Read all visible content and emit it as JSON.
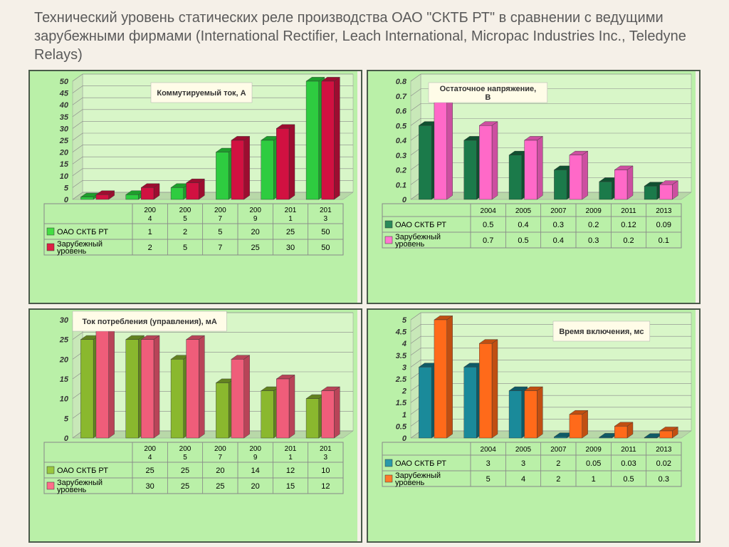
{
  "title": "Технический уровень статических реле производства ОАО \"СКТБ РТ\" в сравнении с ведущими зарубежными фирмами (International Rectifier, Leach International, Micropac Industries Inc., Teledyne Relays)",
  "years_short": [
    "200\n4",
    "200\n5",
    "200\n7",
    "200\n9",
    "201\n1",
    "201\n3"
  ],
  "years_full": [
    "2004",
    "2005",
    "2007",
    "2009",
    "2011",
    "2013"
  ],
  "legend_series1": "ОАО СКТБ РТ",
  "legend_series2": "Зарубежный уровень",
  "panel_bg": "#baf0a8",
  "chart_bg_light": "#d8f6c8",
  "chart_floor": "#b8d8a8",
  "chart_wall": "#c8e8b8",
  "grid_color": "#888888",
  "table_border": "#888888",
  "charts": [
    {
      "id": "c1",
      "title": "Коммутируемый ток, А",
      "color1": "#2ecc40",
      "color1_side": "#1e9e2c",
      "color2": "#d11141",
      "color2_side": "#9c0d30",
      "swatch1": "#44dd44",
      "swatch2": "#dd2244",
      "ymin": 0,
      "ymax": 50,
      "ystep": 5,
      "series1": [
        1,
        2,
        5,
        20,
        25,
        50
      ],
      "series2": [
        2,
        5,
        7,
        25,
        30,
        50
      ],
      "x_labels": "short"
    },
    {
      "id": "c2",
      "title": "Остаточное напряжение, В",
      "color1": "#1b7a4a",
      "color1_side": "#105030",
      "color2": "#ff69c8",
      "color2_side": "#cc4fa0",
      "swatch1": "#2a8a5a",
      "swatch2": "#ff78d0",
      "ymin": 0,
      "ymax": 0.8,
      "ystep": 0.1,
      "series1": [
        0.5,
        0.4,
        0.3,
        0.2,
        0.12,
        0.09
      ],
      "series2": [
        0.7,
        0.5,
        0.4,
        0.3,
        0.2,
        0.1
      ],
      "x_labels": "full"
    },
    {
      "id": "c3",
      "title": "Ток потребления (управления), мА",
      "color1": "#8ab82e",
      "color1_side": "#628220",
      "color2": "#ef5d7a",
      "color2_side": "#b84458",
      "swatch1": "#9ac83e",
      "swatch2": "#ff6d8a",
      "ymin": 0,
      "ymax": 30,
      "ystep": 5,
      "series1": [
        25,
        25,
        20,
        14,
        12,
        10
      ],
      "series2": [
        30,
        25,
        25,
        20,
        15,
        12
      ],
      "x_labels": "short"
    },
    {
      "id": "c4",
      "title": "Время включения, мс",
      "color1": "#1a8a9a",
      "color1_side": "#0f5a66",
      "color2": "#ff6a1a",
      "color2_side": "#c04f12",
      "swatch1": "#2a9aaa",
      "swatch2": "#ff7a2a",
      "ymin": 0,
      "ymax": 5,
      "ystep": 0.5,
      "series1": [
        3,
        3,
        2,
        0.05,
        0.03,
        0.02
      ],
      "series2": [
        5,
        4,
        2,
        1,
        0.5,
        0.3
      ],
      "x_labels": "full"
    }
  ]
}
